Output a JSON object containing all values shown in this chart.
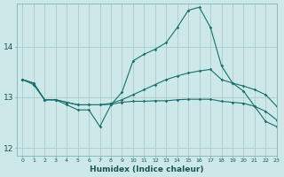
{
  "xlabel": "Humidex (Indice chaleur)",
  "bg_color": "#cce8e8",
  "grid_color": "#aacccc",
  "line_color": "#1a6e6e",
  "xlim": [
    -0.5,
    23
  ],
  "ylim": [
    11.85,
    14.85
  ],
  "yticks": [
    12,
    13,
    14
  ],
  "xticks": [
    0,
    1,
    2,
    3,
    4,
    5,
    6,
    7,
    8,
    9,
    10,
    11,
    12,
    13,
    14,
    15,
    16,
    17,
    18,
    19,
    20,
    21,
    22,
    23
  ],
  "line_spike_x": [
    0,
    1,
    2,
    3,
    4,
    5,
    6,
    7,
    8,
    9,
    10,
    11,
    12,
    13,
    14,
    15,
    16,
    17,
    18,
    19,
    20,
    21,
    22,
    23
  ],
  "line_spike_y": [
    13.35,
    13.25,
    12.95,
    12.95,
    12.85,
    12.75,
    12.75,
    12.42,
    12.85,
    13.1,
    13.72,
    13.85,
    13.95,
    14.08,
    14.38,
    14.72,
    14.78,
    14.38,
    13.62,
    13.28,
    13.12,
    12.82,
    12.52,
    12.42
  ],
  "line_diag_x": [
    0,
    1,
    2,
    3,
    4,
    5,
    6,
    7,
    8,
    9,
    10,
    11,
    12,
    13,
    14,
    15,
    16,
    17,
    18,
    19,
    20,
    21,
    22,
    23
  ],
  "line_diag_y": [
    13.35,
    13.28,
    12.95,
    12.95,
    12.9,
    12.85,
    12.85,
    12.85,
    12.88,
    12.95,
    13.05,
    13.15,
    13.25,
    13.35,
    13.42,
    13.48,
    13.52,
    13.55,
    13.35,
    13.28,
    13.22,
    13.15,
    13.05,
    12.82
  ],
  "line_flat_x": [
    0,
    1,
    2,
    3,
    4,
    5,
    6,
    7,
    8,
    9,
    10,
    11,
    12,
    13,
    14,
    15,
    16,
    17,
    18,
    19,
    20,
    21,
    22,
    23
  ],
  "line_flat_y": [
    13.35,
    13.28,
    12.95,
    12.95,
    12.9,
    12.85,
    12.85,
    12.85,
    12.86,
    12.9,
    12.92,
    12.92,
    12.93,
    12.93,
    12.95,
    12.96,
    12.96,
    12.96,
    12.92,
    12.9,
    12.88,
    12.82,
    12.72,
    12.55
  ]
}
